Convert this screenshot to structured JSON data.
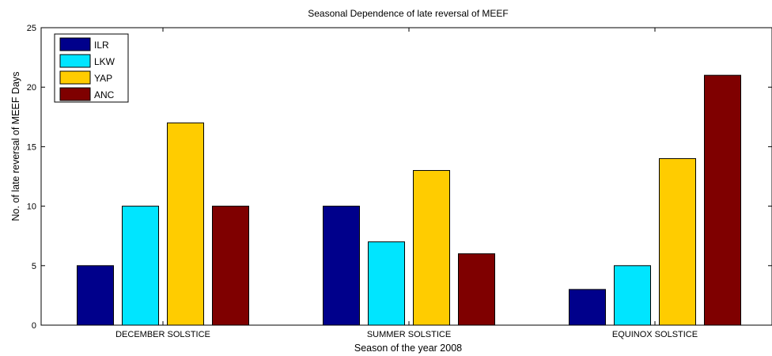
{
  "chart_data": {
    "type": "bar",
    "title": "Seasonal Dependence of late reversal of MEEF",
    "xlabel": "Season of the year 2008",
    "ylabel": "No. of late reversal of MEEF Days",
    "categories": [
      "DECEMBER SOLSTICE",
      "SUMMER SOLSTICE",
      "EQUINOX SOLSTICE"
    ],
    "ylim": [
      0,
      25
    ],
    "yticks": [
      0,
      5,
      10,
      15,
      20,
      25
    ],
    "grid": false,
    "legend_position": "top-left",
    "series": [
      {
        "name": "ILR",
        "color": "#00008b",
        "values": [
          5,
          10,
          3
        ]
      },
      {
        "name": "LKW",
        "color": "#00e5ff",
        "values": [
          10,
          7,
          5
        ]
      },
      {
        "name": "YAP",
        "color": "#ffcc00",
        "values": [
          17,
          13,
          14
        ]
      },
      {
        "name": "ANC",
        "color": "#7f0000",
        "values": [
          10,
          6,
          21
        ]
      }
    ]
  }
}
